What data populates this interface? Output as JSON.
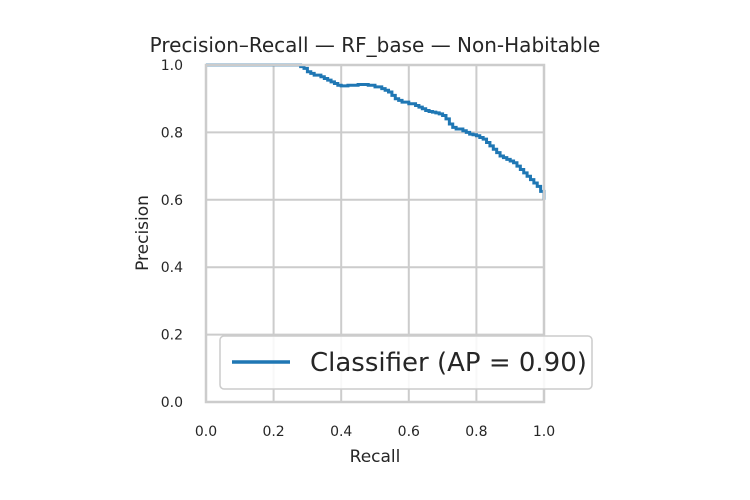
{
  "chart_data": {
    "type": "line",
    "title": "Precision–Recall — RF_base — Non-Habitable",
    "xlabel": "Recall",
    "ylabel": "Precision",
    "xlim": [
      0.0,
      1.0
    ],
    "ylim": [
      0.0,
      1.0
    ],
    "xticks": [
      "0.0",
      "0.2",
      "0.4",
      "0.6",
      "0.8",
      "1.0"
    ],
    "yticks": [
      "0.0",
      "0.2",
      "0.4",
      "0.6",
      "0.8",
      "1.0"
    ],
    "grid": true,
    "legend_position": "bottom-right",
    "series": [
      {
        "name": "Classifier (AP = 0.90)",
        "color": "#1f77b4",
        "x": [
          0.0,
          0.05,
          0.1,
          0.15,
          0.2,
          0.25,
          0.27,
          0.28,
          0.29,
          0.3,
          0.31,
          0.32,
          0.34,
          0.35,
          0.36,
          0.37,
          0.38,
          0.39,
          0.4,
          0.42,
          0.45,
          0.48,
          0.5,
          0.52,
          0.53,
          0.54,
          0.55,
          0.56,
          0.57,
          0.58,
          0.6,
          0.62,
          0.63,
          0.64,
          0.65,
          0.66,
          0.67,
          0.68,
          0.69,
          0.7,
          0.71,
          0.72,
          0.73,
          0.74,
          0.75,
          0.76,
          0.77,
          0.78,
          0.79,
          0.8,
          0.81,
          0.82,
          0.83,
          0.84,
          0.85,
          0.86,
          0.87,
          0.88,
          0.89,
          0.9,
          0.91,
          0.92,
          0.93,
          0.94,
          0.95,
          0.96,
          0.97,
          0.98,
          0.99,
          1.0
        ],
        "y": [
          1.0,
          1.0,
          1.0,
          1.0,
          1.0,
          1.0,
          1.0,
          0.995,
          0.99,
          0.98,
          0.975,
          0.97,
          0.965,
          0.96,
          0.955,
          0.95,
          0.945,
          0.94,
          0.938,
          0.94,
          0.942,
          0.94,
          0.935,
          0.93,
          0.925,
          0.92,
          0.91,
          0.9,
          0.895,
          0.89,
          0.885,
          0.88,
          0.875,
          0.87,
          0.865,
          0.862,
          0.86,
          0.858,
          0.855,
          0.85,
          0.84,
          0.825,
          0.815,
          0.81,
          0.81,
          0.805,
          0.8,
          0.795,
          0.793,
          0.79,
          0.785,
          0.78,
          0.77,
          0.76,
          0.75,
          0.74,
          0.73,
          0.725,
          0.72,
          0.715,
          0.71,
          0.7,
          0.69,
          0.68,
          0.67,
          0.66,
          0.65,
          0.64,
          0.625,
          0.6
        ]
      }
    ]
  }
}
